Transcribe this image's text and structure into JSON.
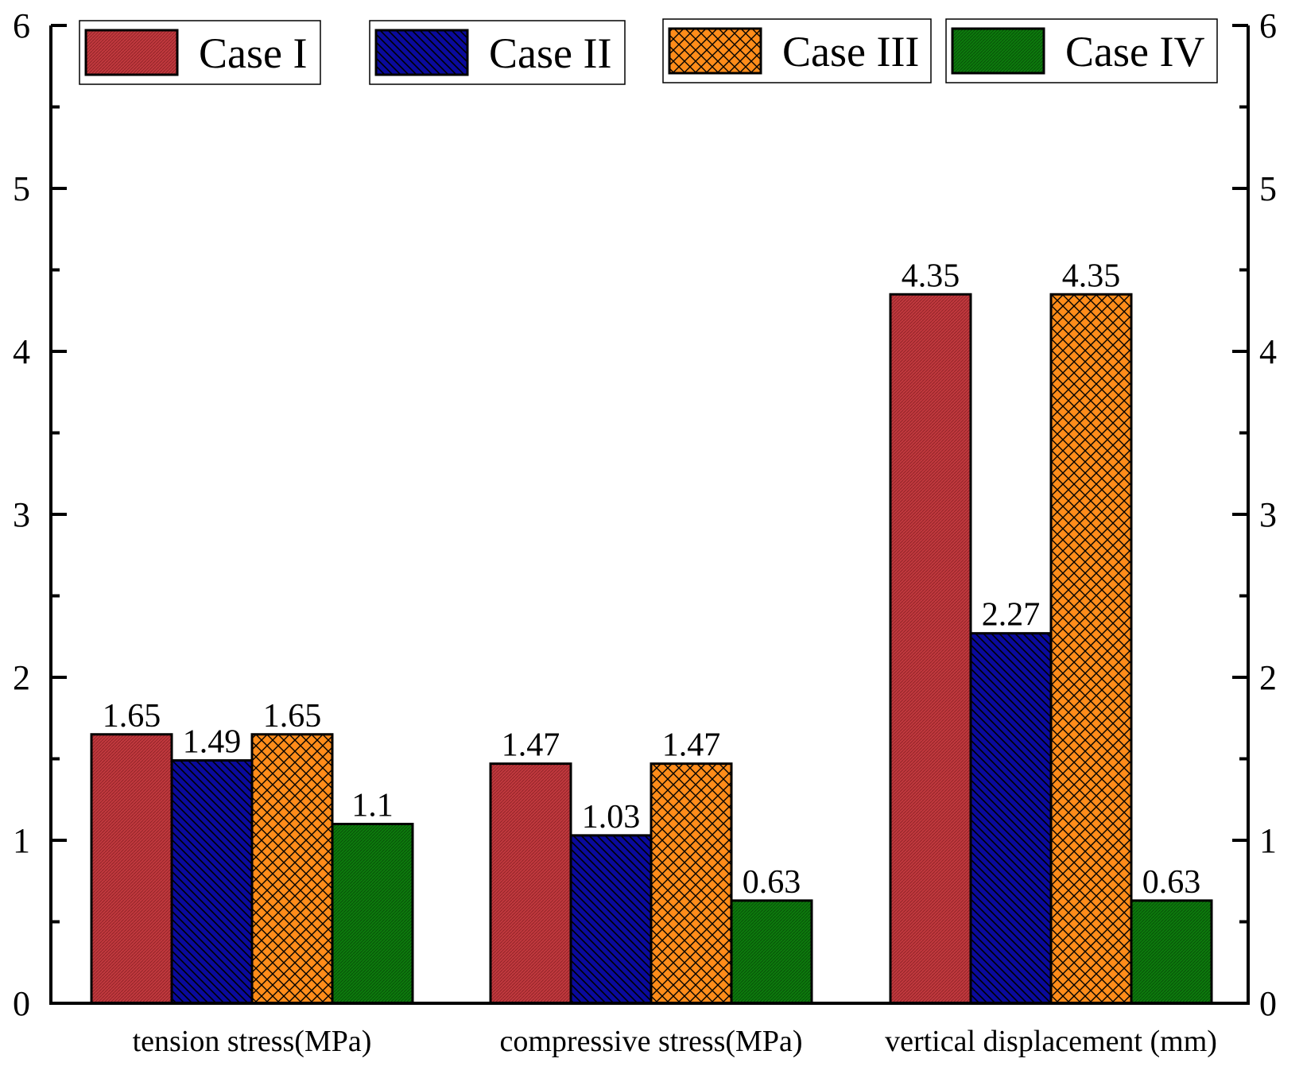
{
  "chart_data": {
    "type": "bar",
    "categories": [
      "tension stress(MPa)",
      "compressive stress(MPa)",
      "vertical displacement (mm)"
    ],
    "series": [
      {
        "name": "Case I",
        "values": [
          1.65,
          1.47,
          4.35
        ],
        "labels": [
          "1.65",
          "1.47",
          "4.35"
        ],
        "color": "#c0393e",
        "pattern": "fine-texture"
      },
      {
        "name": "Case II",
        "values": [
          1.49,
          1.03,
          2.27
        ],
        "labels": [
          "1.49",
          "1.03",
          "2.27"
        ],
        "color": "#0a0a9c",
        "pattern": "diagonal-hatch"
      },
      {
        "name": "Case III",
        "values": [
          1.65,
          1.47,
          4.35
        ],
        "labels": [
          "1.65",
          "1.47",
          "4.35"
        ],
        "color": "#ff8c1a",
        "pattern": "cross-hatch"
      },
      {
        "name": "Case IV",
        "values": [
          1.1,
          0.63,
          0.63
        ],
        "labels": [
          "1.1",
          "0.63",
          "0.63"
        ],
        "color": "#0d7a0d",
        "pattern": "fine-texture"
      }
    ],
    "ylim": [
      0,
      6
    ],
    "yticks": [
      0,
      1,
      2,
      3,
      4,
      5,
      6
    ],
    "yticks_right": [
      0,
      1,
      2,
      3,
      4,
      5,
      6
    ],
    "ytick_labels": [
      "0",
      "1",
      "2",
      "3",
      "4",
      "5",
      "6"
    ],
    "title": "",
    "xlabel": "",
    "ylabel": "",
    "grid": false,
    "legend_position": "top"
  }
}
